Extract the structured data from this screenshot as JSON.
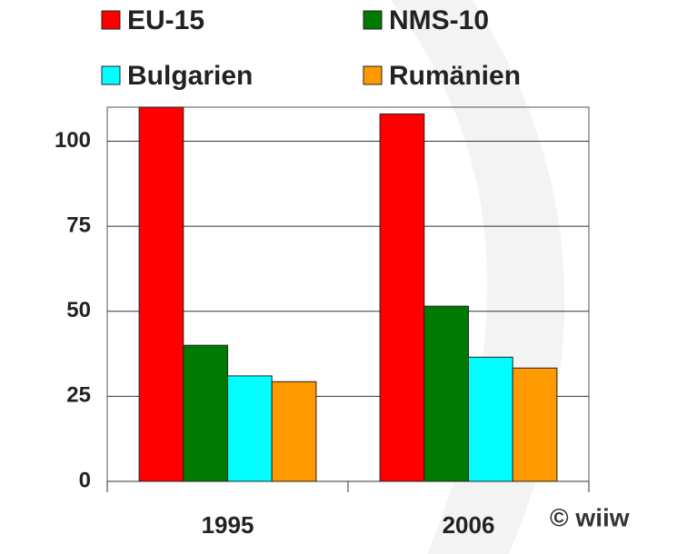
{
  "chart_data": {
    "type": "bar",
    "categories": [
      "1995",
      "2006"
    ],
    "series": [
      {
        "name": "EU-15",
        "color": "#ff0000",
        "values": [
          110,
          108
        ]
      },
      {
        "name": "NMS-10",
        "color": "#007a00",
        "values": [
          40,
          51.5
        ]
      },
      {
        "name": "Bulgarien",
        "color": "#00ffff",
        "values": [
          31,
          36.5
        ]
      },
      {
        "name": "Rumänien",
        "color": "#ff9900",
        "values": [
          29.3,
          33.3
        ]
      }
    ],
    "ylim": [
      0,
      110
    ],
    "yticks": [
      0,
      25,
      50,
      75,
      100
    ],
    "grid": true,
    "annotation": "© wiiw"
  }
}
